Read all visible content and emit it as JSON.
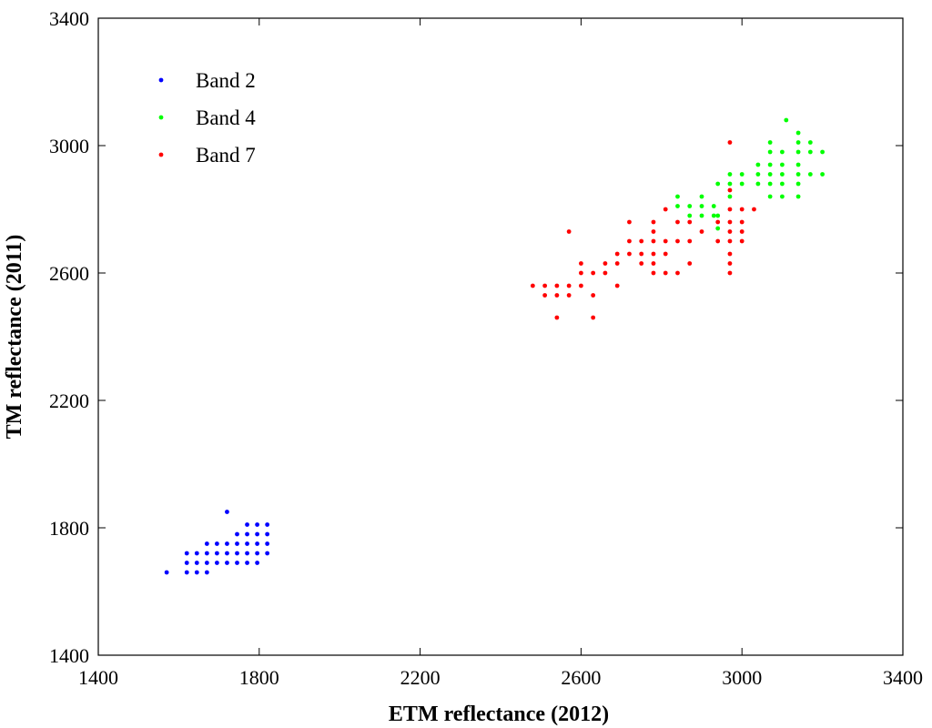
{
  "chart_data": {
    "type": "scatter",
    "title": "",
    "xlabel": "ETM reflectance (2012)",
    "ylabel": "TM reflectance (2011)",
    "xlim": [
      1400,
      3400
    ],
    "ylim": [
      1400,
      3400
    ],
    "xticks": [
      1400,
      1800,
      2200,
      2600,
      3000,
      3400
    ],
    "yticks": [
      1400,
      1800,
      2200,
      2600,
      3000,
      3400
    ],
    "grid": false,
    "legend_position": "top-left",
    "series": [
      {
        "name": "Band 2",
        "color": "#0000ff",
        "points": [
          [
            1570,
            1660
          ],
          [
            1620,
            1660
          ],
          [
            1645,
            1660
          ],
          [
            1670,
            1660
          ],
          [
            1620,
            1690
          ],
          [
            1645,
            1690
          ],
          [
            1670,
            1690
          ],
          [
            1695,
            1690
          ],
          [
            1720,
            1690
          ],
          [
            1745,
            1690
          ],
          [
            1770,
            1690
          ],
          [
            1795,
            1690
          ],
          [
            1620,
            1720
          ],
          [
            1645,
            1720
          ],
          [
            1670,
            1720
          ],
          [
            1695,
            1720
          ],
          [
            1720,
            1720
          ],
          [
            1745,
            1720
          ],
          [
            1770,
            1720
          ],
          [
            1795,
            1720
          ],
          [
            1820,
            1720
          ],
          [
            1670,
            1750
          ],
          [
            1695,
            1750
          ],
          [
            1720,
            1750
          ],
          [
            1745,
            1750
          ],
          [
            1770,
            1750
          ],
          [
            1795,
            1750
          ],
          [
            1820,
            1750
          ],
          [
            1745,
            1780
          ],
          [
            1770,
            1780
          ],
          [
            1795,
            1780
          ],
          [
            1820,
            1780
          ],
          [
            1770,
            1810
          ],
          [
            1795,
            1810
          ],
          [
            1820,
            1810
          ],
          [
            1720,
            1850
          ]
        ]
      },
      {
        "name": "Band 4",
        "color": "#00ff00",
        "points": [
          [
            2840,
            2840
          ],
          [
            2840,
            2810
          ],
          [
            2870,
            2780
          ],
          [
            2870,
            2810
          ],
          [
            2900,
            2780
          ],
          [
            2900,
            2810
          ],
          [
            2900,
            2840
          ],
          [
            2930,
            2780
          ],
          [
            2930,
            2810
          ],
          [
            2940,
            2740
          ],
          [
            2940,
            2780
          ],
          [
            2940,
            2880
          ],
          [
            2970,
            2840
          ],
          [
            2970,
            2880
          ],
          [
            2970,
            2910
          ],
          [
            3000,
            2880
          ],
          [
            3000,
            2910
          ],
          [
            3040,
            2880
          ],
          [
            3040,
            2910
          ],
          [
            3040,
            2940
          ],
          [
            3070,
            2840
          ],
          [
            3070,
            2880
          ],
          [
            3070,
            2910
          ],
          [
            3070,
            2940
          ],
          [
            3070,
            2980
          ],
          [
            3070,
            3010
          ],
          [
            3100,
            2840
          ],
          [
            3100,
            2880
          ],
          [
            3100,
            2910
          ],
          [
            3100,
            2940
          ],
          [
            3100,
            2980
          ],
          [
            3110,
            3080
          ],
          [
            3140,
            2840
          ],
          [
            3140,
            2880
          ],
          [
            3140,
            2910
          ],
          [
            3140,
            2940
          ],
          [
            3140,
            2980
          ],
          [
            3140,
            3010
          ],
          [
            3140,
            3040
          ],
          [
            3170,
            2910
          ],
          [
            3170,
            2980
          ],
          [
            3170,
            3010
          ],
          [
            3200,
            2910
          ],
          [
            3200,
            2980
          ]
        ]
      },
      {
        "name": "Band 7",
        "color": "#ff0000",
        "points": [
          [
            2480,
            2560
          ],
          [
            2510,
            2530
          ],
          [
            2510,
            2560
          ],
          [
            2540,
            2460
          ],
          [
            2540,
            2530
          ],
          [
            2540,
            2560
          ],
          [
            2570,
            2530
          ],
          [
            2570,
            2560
          ],
          [
            2570,
            2730
          ],
          [
            2600,
            2560
          ],
          [
            2600,
            2600
          ],
          [
            2600,
            2630
          ],
          [
            2630,
            2460
          ],
          [
            2630,
            2530
          ],
          [
            2630,
            2600
          ],
          [
            2660,
            2600
          ],
          [
            2660,
            2630
          ],
          [
            2690,
            2560
          ],
          [
            2690,
            2630
          ],
          [
            2690,
            2660
          ],
          [
            2720,
            2660
          ],
          [
            2720,
            2700
          ],
          [
            2720,
            2760
          ],
          [
            2750,
            2630
          ],
          [
            2750,
            2660
          ],
          [
            2750,
            2700
          ],
          [
            2780,
            2600
          ],
          [
            2780,
            2630
          ],
          [
            2780,
            2660
          ],
          [
            2780,
            2700
          ],
          [
            2780,
            2730
          ],
          [
            2780,
            2760
          ],
          [
            2810,
            2600
          ],
          [
            2810,
            2660
          ],
          [
            2810,
            2700
          ],
          [
            2810,
            2800
          ],
          [
            2840,
            2600
          ],
          [
            2840,
            2700
          ],
          [
            2840,
            2760
          ],
          [
            2870,
            2630
          ],
          [
            2870,
            2700
          ],
          [
            2870,
            2760
          ],
          [
            2900,
            2730
          ],
          [
            2940,
            2700
          ],
          [
            2940,
            2760
          ],
          [
            2970,
            2600
          ],
          [
            2970,
            2630
          ],
          [
            2970,
            2660
          ],
          [
            2970,
            2700
          ],
          [
            2970,
            2730
          ],
          [
            2970,
            2760
          ],
          [
            2970,
            2800
          ],
          [
            2970,
            2860
          ],
          [
            2970,
            3010
          ],
          [
            3000,
            2700
          ],
          [
            3000,
            2730
          ],
          [
            3000,
            2760
          ],
          [
            3000,
            2800
          ],
          [
            3030,
            2800
          ]
        ]
      }
    ]
  }
}
